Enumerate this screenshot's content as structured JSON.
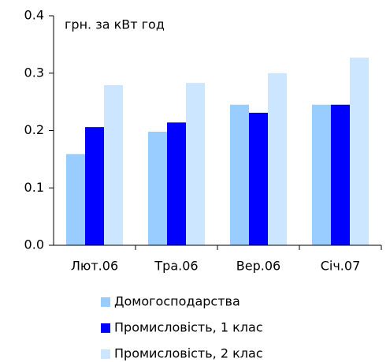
{
  "chart_data": {
    "type": "bar",
    "annotation": "грн. за кВт год",
    "categories": [
      "Лют.06",
      "Тра.06",
      "Вер.06",
      "Січ.07"
    ],
    "series": [
      {
        "name": "Домогосподарства",
        "color": "#99ccff",
        "values": [
          0.159,
          0.198,
          0.245,
          0.245
        ]
      },
      {
        "name": "Промисловість, 1 клас",
        "color": "#0000ff",
        "values": [
          0.206,
          0.214,
          0.231,
          0.245
        ]
      },
      {
        "name": "Промисловість, 2 клас",
        "color": "#cce6ff",
        "values": [
          0.279,
          0.283,
          0.3,
          0.327
        ]
      }
    ],
    "ylim": [
      0,
      0.4
    ],
    "yticks": [
      {
        "value": 0,
        "label": "0.0"
      },
      0.1,
      0.2,
      0.3,
      0.4
    ],
    "grid": false,
    "legend": "bottom"
  }
}
